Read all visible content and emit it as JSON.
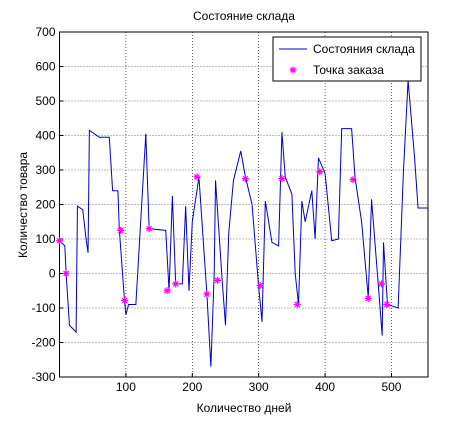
{
  "chart_data": {
    "type": "line",
    "title": "Состояние склада",
    "xlabel": "Количество дней",
    "ylabel": "Количество товара",
    "xlim": [
      0,
      555
    ],
    "ylim": [
      -300,
      700
    ],
    "xticks": [
      100,
      200,
      300,
      400,
      500
    ],
    "yticks": [
      -300,
      -200,
      -100,
      0,
      100,
      200,
      300,
      400,
      500,
      600,
      700
    ],
    "grid": true,
    "legend": "northeast",
    "series": [
      {
        "name": "Состояния склада",
        "type": "line",
        "color": "#0000cc",
        "x": [
          0,
          8,
          10,
          15,
          25,
          27,
          35,
          40,
          43,
          45,
          60,
          75,
          80,
          88,
          90,
          98,
          100,
          104,
          115,
          130,
          135,
          160,
          165,
          170,
          175,
          185,
          190,
          195,
          200,
          210,
          222,
          228,
          233,
          235,
          245,
          250,
          255,
          262,
          273,
          280,
          290,
          300,
          305,
          310,
          320,
          330,
          335,
          340,
          350,
          355,
          360,
          365,
          370,
          380,
          385,
          390,
          400,
          410,
          420,
          425,
          440,
          445,
          455,
          465,
          470,
          480,
          486,
          488,
          494,
          510,
          518,
          525,
          535,
          540,
          555
        ],
        "values": [
          95,
          80,
          0,
          -150,
          -170,
          195,
          185,
          100,
          60,
          415,
          395,
          395,
          240,
          240,
          130,
          -80,
          -120,
          -90,
          -90,
          405,
          130,
          125,
          -50,
          225,
          -30,
          -30,
          195,
          -50,
          150,
          280,
          -60,
          -270,
          0,
          270,
          -20,
          -150,
          120,
          270,
          355,
          280,
          200,
          -40,
          -140,
          210,
          90,
          80,
          410,
          280,
          230,
          0,
          -90,
          210,
          150,
          240,
          100,
          335,
          290,
          95,
          100,
          420,
          420,
          280,
          150,
          -70,
          215,
          -30,
          -180,
          90,
          -90,
          -100,
          295,
          560,
          330,
          190,
          190
        ]
      },
      {
        "name": "Точка заказа",
        "type": "scatter",
        "color": "#ff00ff",
        "x": [
          0,
          10,
          92,
          98,
          135,
          162,
          175,
          207,
          222,
          238,
          280,
          302,
          335,
          358,
          392,
          442,
          465,
          485,
          493
        ],
        "values": [
          95,
          0,
          125,
          -78,
          130,
          -50,
          -30,
          280,
          -60,
          -20,
          275,
          -35,
          275,
          -90,
          295,
          272,
          -72,
          -30,
          -90
        ]
      }
    ]
  }
}
